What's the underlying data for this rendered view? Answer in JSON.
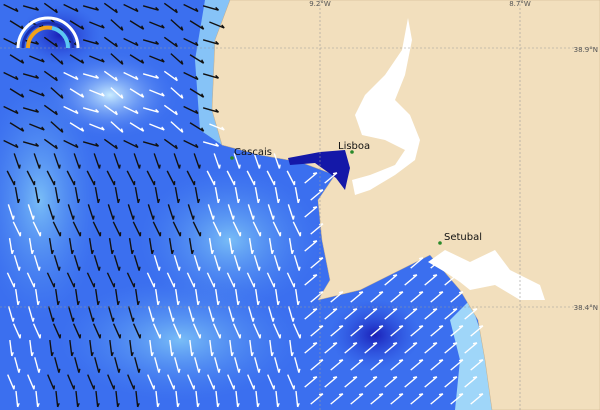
{
  "map": {
    "grid_labels": {
      "lon": [
        "9.2°W",
        "8.7°W"
      ],
      "lat": [
        "38.9°N",
        "38.4°N"
      ]
    },
    "places": [
      "Cascais",
      "Lisboa",
      "Setubal"
    ]
  }
}
